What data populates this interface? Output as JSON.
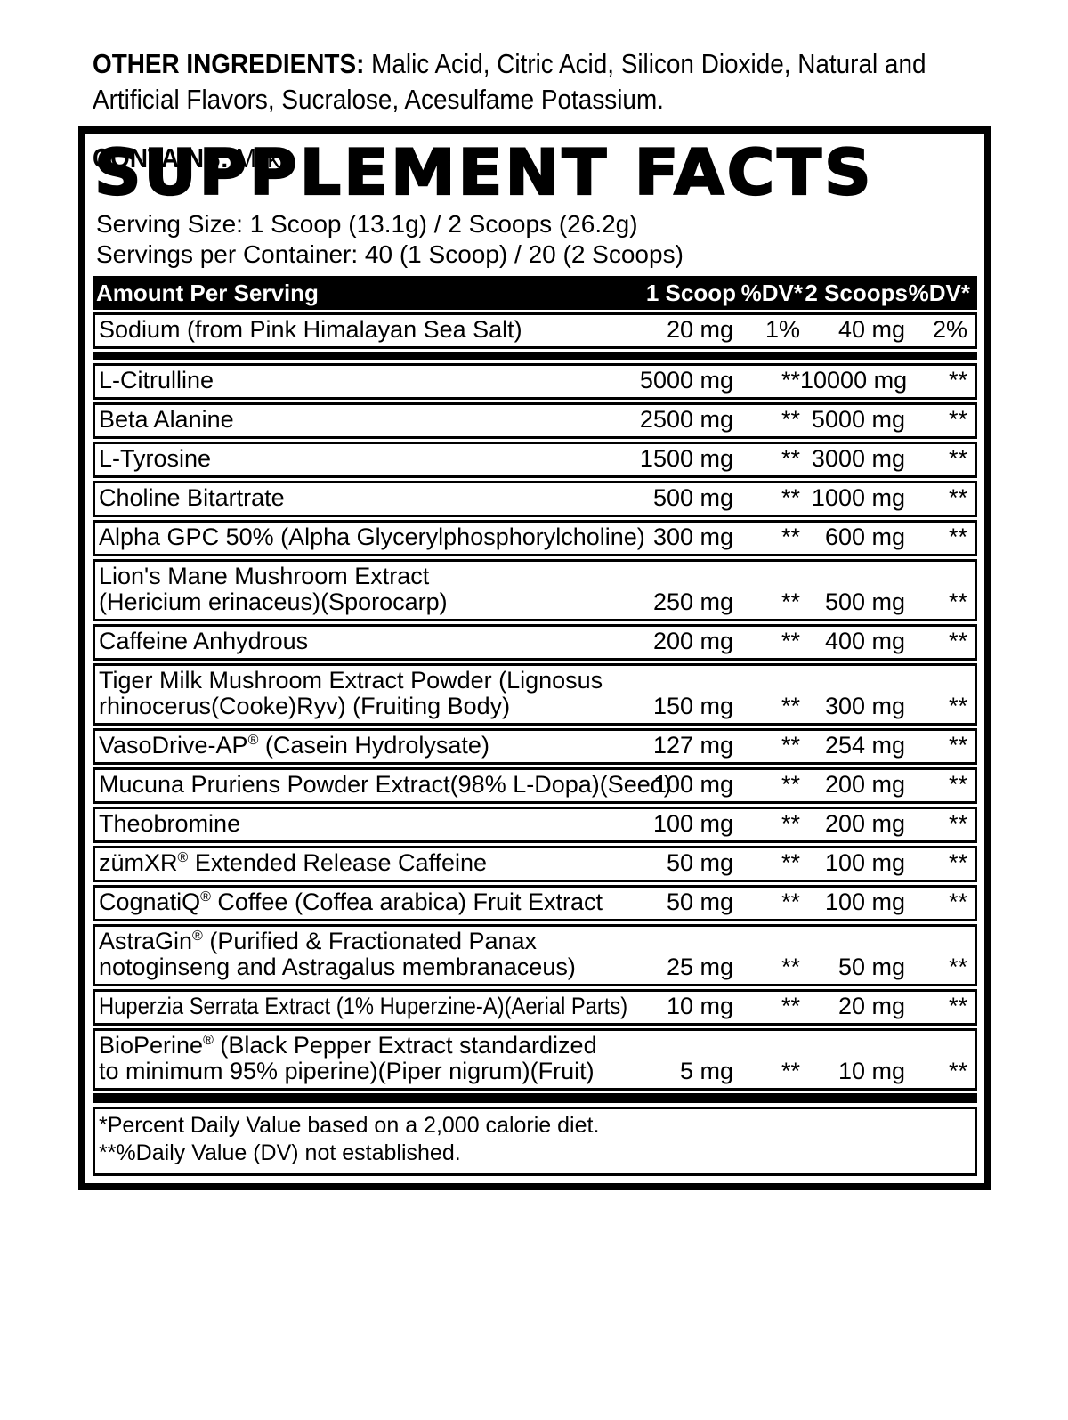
{
  "title": "SUPPLEMENT FACTS",
  "serving": {
    "size_line": "Serving Size: 1 Scoop (13.1g) / 2 Scoops (26.2g)",
    "per_container_line": "Servings per Container: 40 (1 Scoop) / 20 (2 Scoops)"
  },
  "table": {
    "header": {
      "amount_label": "Amount Per Serving",
      "col_scoop1": "1 Scoop",
      "col_dv1": "%DV*",
      "col_scoop2": "2 Scoops",
      "col_dv2": "%DV*"
    },
    "sodium_row": {
      "name": "Sodium (from Pink Himalayan Sea Salt)",
      "amount1": "20 mg",
      "dv1": "1%",
      "amount2": "40 mg",
      "dv2": "2%"
    },
    "rows": [
      {
        "name": "L-Citrulline",
        "amount1": "5000 mg",
        "dv1": "**",
        "amount2": "10000 mg",
        "dv2": "**"
      },
      {
        "name": "Beta Alanine",
        "amount1": "2500 mg",
        "dv1": "**",
        "amount2": "5000 mg",
        "dv2": "**"
      },
      {
        "name": "L-Tyrosine",
        "amount1": "1500 mg",
        "dv1": "**",
        "amount2": "3000 mg",
        "dv2": "**"
      },
      {
        "name": "Choline Bitartrate",
        "amount1": "500 mg",
        "dv1": "**",
        "amount2": "1000 mg",
        "dv2": "**"
      },
      {
        "name": "Alpha GPC 50% (Alpha Glycerylphosphorylcholine)",
        "amount1": "300 mg",
        "dv1": "**",
        "amount2": "600 mg",
        "dv2": "**"
      },
      {
        "name": "Lion's Mane Mushroom Extract\n(Hericium erinaceus)(Sporocarp)",
        "amount1": "250 mg",
        "dv1": "**",
        "amount2": "500 mg",
        "dv2": "**"
      },
      {
        "name": "Caffeine Anhydrous",
        "amount1": "200 mg",
        "dv1": "**",
        "amount2": "400 mg",
        "dv2": "**"
      },
      {
        "name": "Tiger Milk Mushroom Extract Powder (Lignosus\nrhinocerus(Cooke)Ryv) (Fruiting Body)",
        "amount1": "150 mg",
        "dv1": "**",
        "amount2": "300 mg",
        "dv2": "**"
      },
      {
        "name": "VasoDrive-AP® (Casein Hydrolysate)",
        "amount1": "127 mg",
        "dv1": "**",
        "amount2": "254 mg",
        "dv2": "**"
      },
      {
        "name": "Mucuna Pruriens Powder Extract(98% L-Dopa)(Seed)",
        "amount1": "100 mg",
        "dv1": "**",
        "amount2": "200 mg",
        "dv2": "**"
      },
      {
        "name": "Theobromine",
        "amount1": "100 mg",
        "dv1": "**",
        "amount2": "200 mg",
        "dv2": "**"
      },
      {
        "name": "zümXR® Extended Release Caffeine",
        "amount1": "50 mg",
        "dv1": "**",
        "amount2": "100 mg",
        "dv2": "**"
      },
      {
        "name": "CognatiQ® Coffee (Coffea arabica) Fruit Extract",
        "amount1": "50 mg",
        "dv1": "**",
        "amount2": "100 mg",
        "dv2": "**"
      },
      {
        "name": "AstraGin® (Purified & Fractionated Panax\nnotoginseng and Astragalus membranaceus)",
        "amount1": "25 mg",
        "dv1": "**",
        "amount2": "50 mg",
        "dv2": "**"
      },
      {
        "name": "Huperzia Serrata Extract (1% Huperzine-A)(Aerial Parts)",
        "condensed": true,
        "amount1": "10 mg",
        "dv1": "**",
        "amount2": "20 mg",
        "dv2": "**"
      },
      {
        "name": "BioPerine® (Black Pepper Extract standardized\nto minimum 95% piperine)(Piper nigrum)(Fruit)",
        "amount1": "5 mg",
        "dv1": "**",
        "amount2": "10 mg",
        "dv2": "**"
      }
    ],
    "footnotes": [
      "*Percent Daily Value based on a 2,000 calorie diet.",
      "**%Daily Value (DV) not established."
    ]
  },
  "other_ingredients": {
    "label": "OTHER INGREDIENTS:",
    "text": "Malic Acid, Citric Acid, Silicon Dioxide, Natural and Artificial Flavors, Sucralose, Acesulfame Potassium."
  },
  "contains": {
    "label": "CONTAINS:",
    "text": "Milk."
  },
  "colors": {
    "ink": "#000000",
    "paper": "#ffffff"
  }
}
